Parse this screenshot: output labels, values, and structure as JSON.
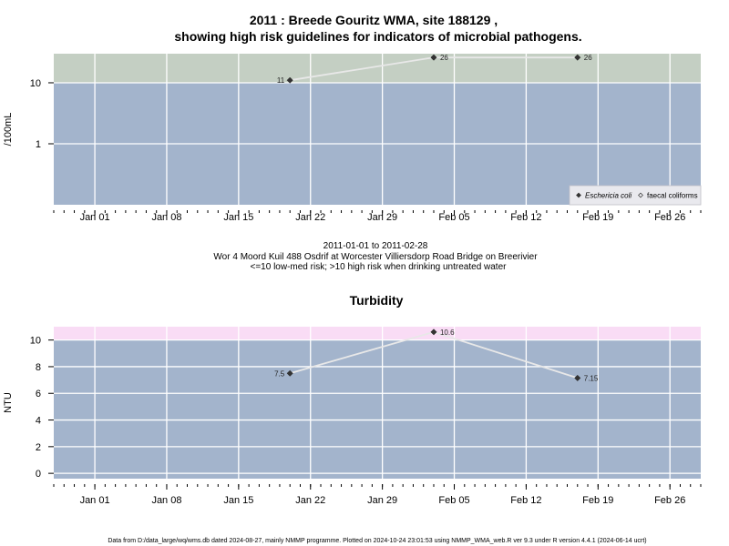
{
  "chart_data": [
    {
      "type": "line",
      "title": [
        "2011 : Breede Gouritz WMA, site 188129 ,",
        "showing high risk guidelines for indicators of microbial pathogens."
      ],
      "ylabel": "/100mL",
      "yscale": "log",
      "ylim": [
        0.1,
        30
      ],
      "yticks": [
        1,
        10
      ],
      "ytick_labels": [
        "1",
        "10"
      ],
      "xlim": [
        "2010-12-28",
        "2011-03-01"
      ],
      "xticks": [
        "2011-01-01",
        "2011-01-08",
        "2011-01-15",
        "2011-01-22",
        "2011-01-29",
        "2011-02-05",
        "2011-02-12",
        "2011-02-19",
        "2011-02-26"
      ],
      "xtick_labels": [
        "Jan 01",
        "Jan 08",
        "Jan 15",
        "Jan 22",
        "Jan 29",
        "Feb 05",
        "Feb 12",
        "Feb 19",
        "Feb 26"
      ],
      "threshold": 10,
      "bands": [
        {
          "from": 10,
          "to": 30,
          "color": "#c4cfc3"
        },
        {
          "from": 0.1,
          "to": 10,
          "color": "#a3b4cc"
        }
      ],
      "series": [
        {
          "name": "Eschericia coli",
          "marker": "filled-diamond",
          "x": [
            "2011-01-20",
            "2011-02-03",
            "2011-02-17"
          ],
          "y": [
            11,
            26,
            26
          ],
          "labels": [
            "11",
            "26",
            "26"
          ]
        },
        {
          "name": "faecal coliforms",
          "marker": "open-diamond",
          "x": [],
          "y": []
        }
      ],
      "legend_position": "bottom-right",
      "grid": true,
      "captions": [
        "2011-01-01 to 2011-02-28",
        "Wor 4 Moord Kuil 488 Osdrif at Worcester Villiersdorp Road Bridge on Breerivier",
        "<=10 low-med risk; >10 high risk when drinking untreated water"
      ]
    },
    {
      "type": "line",
      "title": "Turbidity",
      "ylabel": "NTU",
      "ylim": [
        -0.4,
        11
      ],
      "yticks": [
        0,
        2,
        4,
        6,
        8,
        10
      ],
      "ytick_labels": [
        "0",
        "2",
        "4",
        "6",
        "8",
        "10"
      ],
      "xlim": [
        "2010-12-28",
        "2011-03-01"
      ],
      "xticks": [
        "2011-01-01",
        "2011-01-08",
        "2011-01-15",
        "2011-01-22",
        "2011-01-29",
        "2011-02-05",
        "2011-02-12",
        "2011-02-19",
        "2011-02-26"
      ],
      "xtick_labels": [
        "Jan 01",
        "Jan 08",
        "Jan 15",
        "Jan 22",
        "Jan 29",
        "Feb 05",
        "Feb 12",
        "Feb 19",
        "Feb 26"
      ],
      "threshold": 10,
      "bands": [
        {
          "from": 10,
          "to": 11,
          "color": "#f9dcf5"
        },
        {
          "from": -0.4,
          "to": 10,
          "color": "#a3b4cc"
        }
      ],
      "series": [
        {
          "marker": "filled-diamond",
          "x": [
            "2011-01-20",
            "2011-02-03",
            "2011-02-17"
          ],
          "y": [
            7.5,
            10.6,
            7.15
          ],
          "labels": [
            "7.5",
            "10.6",
            "7.15"
          ]
        }
      ],
      "grid": true
    }
  ],
  "footer": "Data from D:/data_large/wq/wms.db dated 2024-08-27, mainly NMMP programme. Plotted on 2024-10-24 23:01:53 using NMMP_WMA_web.R ver 9.3 under R version 4.4.1 (2024-06-14 ucrt)"
}
